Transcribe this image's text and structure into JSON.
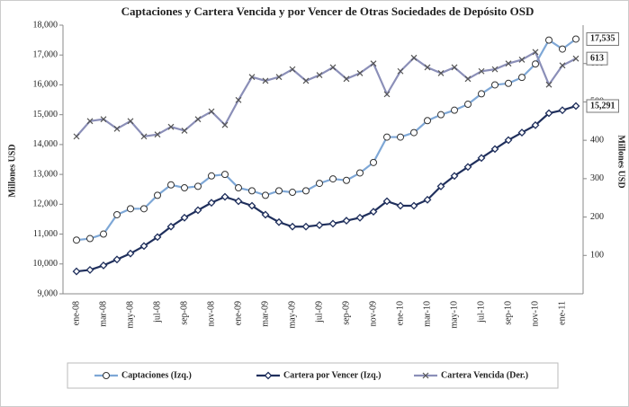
{
  "chart_data": {
    "type": "line",
    "title": "Captaciones y Cartera Vencida y por Vencer de Otras Sociedades de Depósito OSD",
    "ylabel": "Millones  USD",
    "y2label": "Millones  USD",
    "categories": [
      "ene-08",
      null,
      "mar-08",
      null,
      "may-08",
      null,
      "jul-08",
      null,
      "sep-08",
      null,
      "nov-08",
      null,
      "ene-09",
      null,
      "mar-09",
      null,
      "may-09",
      null,
      "jul-09",
      null,
      "sep-09",
      null,
      "nov-09",
      null,
      "ene-10",
      null,
      "mar-10",
      null,
      "may-10",
      null,
      "jul-10",
      null,
      "sep-10",
      null,
      "nov-10",
      null,
      "ene-11",
      null
    ],
    "ylim": [
      9000,
      18000
    ],
    "yticks": [
      {
        "value": 9000,
        "label": "9,000"
      },
      {
        "value": 10000,
        "label": "10,000"
      },
      {
        "value": 11000,
        "label": "11,000"
      },
      {
        "value": 12000,
        "label": "12,000"
      },
      {
        "value": 13000,
        "label": "13,000"
      },
      {
        "value": 14000,
        "label": "14,000"
      },
      {
        "value": 15000,
        "label": "15,000"
      },
      {
        "value": 16000,
        "label": "16,000"
      },
      {
        "value": 17000,
        "label": "17,000"
      },
      {
        "value": 18000,
        "label": "18,000"
      }
    ],
    "y2lim": [
      0,
      700
    ],
    "y2ticks": [
      100,
      200,
      300,
      400,
      500,
      600
    ],
    "grid": false,
    "legend": "bottom",
    "series": [
      {
        "name": "Captaciones (Izq.)",
        "color": "#7ea7d6",
        "marker": "circle",
        "axis": "y",
        "values": [
          10800,
          10850,
          11000,
          11650,
          11850,
          11850,
          12300,
          12650,
          12550,
          12600,
          12950,
          13000,
          12550,
          12450,
          12300,
          12450,
          12400,
          12450,
          12700,
          12850,
          12800,
          13050,
          13400,
          14250,
          14250,
          14400,
          14800,
          15000,
          15150,
          15350,
          15700,
          16000,
          16050,
          16250,
          16700,
          17500,
          17200,
          17535
        ],
        "value_labels": [
          null,
          null,
          null,
          null,
          null,
          null,
          null,
          null,
          null,
          null,
          null,
          null,
          null,
          null,
          null,
          null,
          null,
          null,
          null,
          null,
          null,
          null,
          null,
          null,
          null,
          null,
          null,
          null,
          null,
          null,
          null,
          null,
          null,
          null,
          null,
          null,
          null,
          "17,535"
        ]
      },
      {
        "name": "Cartera por Vencer (Izq.)",
        "color": "#1f2f5c",
        "marker": "diamond",
        "axis": "y",
        "values": [
          9750,
          9800,
          9950,
          10150,
          10350,
          10600,
          10900,
          11250,
          11550,
          11800,
          12050,
          12250,
          12100,
          11950,
          11650,
          11400,
          11250,
          11250,
          11300,
          11350,
          11450,
          11550,
          11750,
          12100,
          11950,
          11950,
          12150,
          12600,
          12950,
          13250,
          13550,
          13850,
          14150,
          14400,
          14650,
          15050,
          15150,
          15291
        ],
        "value_labels": [
          null,
          null,
          null,
          null,
          null,
          null,
          null,
          null,
          null,
          null,
          null,
          null,
          null,
          null,
          null,
          null,
          null,
          null,
          null,
          null,
          null,
          null,
          null,
          null,
          null,
          null,
          null,
          null,
          null,
          null,
          null,
          null,
          null,
          null,
          null,
          null,
          null,
          "15,291"
        ]
      },
      {
        "name": "Cartera Vencida (Der.)",
        "color": "#8b8fb8",
        "marker": "x",
        "axis": "y2",
        "values": [
          410,
          450,
          455,
          430,
          450,
          410,
          415,
          435,
          425,
          455,
          475,
          440,
          505,
          565,
          555,
          565,
          585,
          555,
          570,
          590,
          560,
          575,
          600,
          520,
          580,
          615,
          590,
          575,
          590,
          560,
          580,
          585,
          600,
          610,
          630,
          545,
          595,
          613
        ],
        "value_labels": [
          null,
          null,
          null,
          null,
          null,
          null,
          null,
          null,
          null,
          null,
          null,
          null,
          null,
          null,
          null,
          null,
          null,
          null,
          null,
          null,
          null,
          null,
          null,
          null,
          null,
          null,
          null,
          null,
          null,
          null,
          null,
          null,
          null,
          null,
          null,
          null,
          null,
          "613"
        ]
      }
    ]
  }
}
